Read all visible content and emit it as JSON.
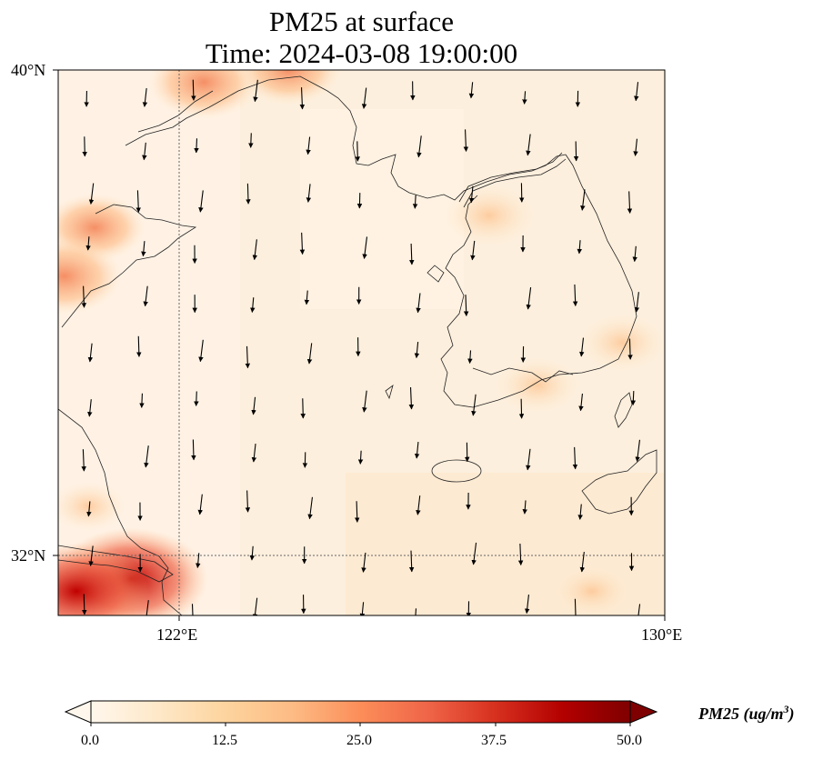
{
  "figure": {
    "title_line1": "PM25 at surface",
    "title_line2": "Time: 2024-03-08 19:00:00"
  },
  "axes": {
    "lat_ticks": [
      "40°N",
      "32°N"
    ],
    "lon_ticks": [
      "122°E",
      "130°E"
    ]
  },
  "colorbar": {
    "label": "PM25 (ug/m",
    "label_sup": "3",
    "label_close": ")",
    "ticks": [
      "0.0",
      "12.5",
      "25.0",
      "37.5",
      "50.0"
    ],
    "colormap": "OrRd",
    "extend": "both",
    "colors": [
      "#fff7ec",
      "#fee8c8",
      "#fdd49e",
      "#fdbb84",
      "#fc8d59",
      "#ef6548",
      "#d7301f",
      "#b30000",
      "#7f0000"
    ]
  },
  "chart_data": {
    "type": "heatmap",
    "variable": "PM25",
    "level": "surface",
    "time": "2024-03-08 19:00:00",
    "units": "ug/m3",
    "xlim": [
      120,
      130
    ],
    "ylim": [
      31,
      40
    ],
    "gridlines": {
      "lon": [
        122
      ],
      "lat": [
        32
      ]
    },
    "color_range": [
      0,
      50
    ],
    "hotspots": [
      {
        "lon": 121.2,
        "lat": 31.6,
        "value": 46
      },
      {
        "lon": 120.3,
        "lat": 31.4,
        "value": 42
      },
      {
        "lon": 122.4,
        "lat": 39.8,
        "value": 28
      },
      {
        "lon": 123.8,
        "lat": 40.0,
        "value": 24
      },
      {
        "lon": 120.6,
        "lat": 37.4,
        "value": 24
      },
      {
        "lon": 120.1,
        "lat": 36.6,
        "value": 30
      },
      {
        "lon": 127.1,
        "lat": 37.6,
        "value": 18
      },
      {
        "lon": 129.3,
        "lat": 35.5,
        "value": 15
      },
      {
        "lon": 127.9,
        "lat": 34.8,
        "value": 14
      },
      {
        "lon": 128.8,
        "lat": 31.4,
        "value": 10
      },
      {
        "lon": 120.5,
        "lat": 32.8,
        "value": 12
      }
    ],
    "wind_vectors_note": "predominantly north-to-south (northerly) flow, arrows pointing south"
  }
}
